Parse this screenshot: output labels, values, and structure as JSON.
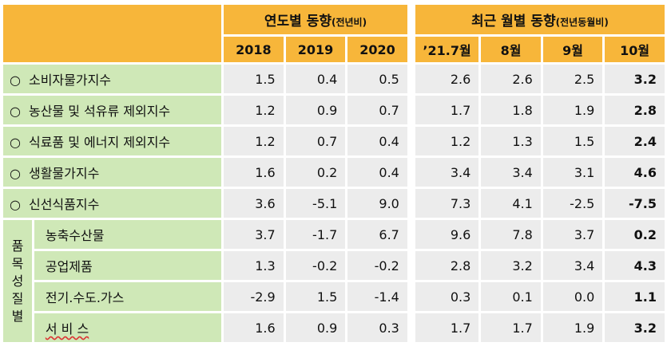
{
  "header": {
    "yearly_title": "연도별 동향",
    "yearly_sub": "(전년비)",
    "recent_title": "최근 월별 동향",
    "recent_sub": "(전년동월비)",
    "columns": [
      "2018",
      "2019",
      "2020",
      "’21.7월",
      "8월",
      "9월",
      "10월"
    ]
  },
  "side_label": [
    "품",
    "목",
    "성",
    "질",
    "별"
  ],
  "bullet": "○",
  "rows": [
    {
      "label": "소비자물가지수",
      "values": [
        "1.5",
        "0.4",
        "0.5",
        "2.6",
        "2.6",
        "2.5",
        "3.2"
      ]
    },
    {
      "label": "농산물 및 석유류 제외지수",
      "values": [
        "1.2",
        "0.9",
        "0.7",
        "1.7",
        "1.8",
        "1.9",
        "2.8"
      ]
    },
    {
      "label": "식료품 및 에너지 제외지수",
      "values": [
        "1.2",
        "0.7",
        "0.4",
        "1.2",
        "1.3",
        "1.5",
        "2.4"
      ]
    },
    {
      "label": "생활물가지수",
      "values": [
        "1.6",
        "0.2",
        "0.4",
        "3.4",
        "3.4",
        "3.1",
        "4.6"
      ]
    },
    {
      "label": "신선식품지수",
      "values": [
        "3.6",
        "-5.1",
        "9.0",
        "7.3",
        "4.1",
        "-2.5",
        "-7.5"
      ]
    },
    {
      "label": "농축수산물",
      "values": [
        "3.7",
        "-1.7",
        "6.7",
        "9.6",
        "7.8",
        "3.7",
        "0.2"
      ]
    },
    {
      "label": "공업제품",
      "values": [
        "1.3",
        "-0.2",
        "-0.2",
        "2.8",
        "3.2",
        "3.4",
        "4.3"
      ]
    },
    {
      "label": "전기.수도.가스",
      "values": [
        "-2.9",
        "1.5",
        "-1.4",
        "0.3",
        "0.1",
        "0.0",
        "1.1"
      ]
    },
    {
      "label": "서 비 스",
      "values": [
        "1.6",
        "0.9",
        "0.3",
        "1.7",
        "1.7",
        "1.9",
        "3.2"
      ]
    }
  ],
  "colors": {
    "header": "#f7b63a",
    "label_bg": "#cfe8b7",
    "cell_bg": "#ececec"
  }
}
